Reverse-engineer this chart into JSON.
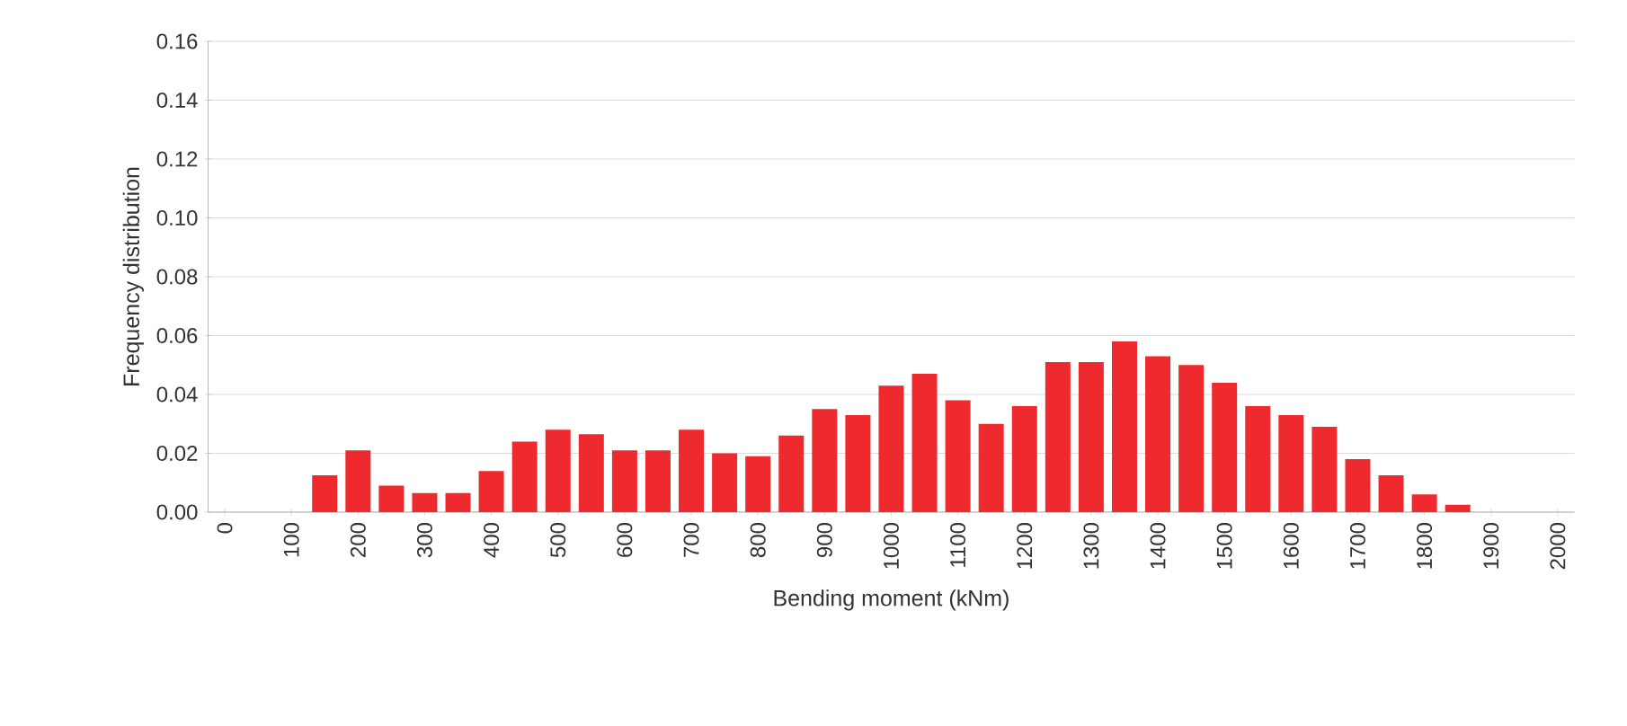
{
  "chart_data": {
    "type": "bar",
    "xlabel": "Bending moment (kNm)",
    "ylabel": "Frequency distribution",
    "categories": [
      "0",
      null,
      "100",
      null,
      "200",
      null,
      "300",
      null,
      "400",
      null,
      "500",
      null,
      "600",
      null,
      "700",
      null,
      "800",
      null,
      "900",
      null,
      "1000",
      null,
      "1100",
      null,
      "1200",
      null,
      "1300",
      null,
      "1400",
      null,
      "1500",
      null,
      "1600",
      null,
      "1700",
      null,
      "1800",
      null,
      "1900",
      null,
      "2000"
    ],
    "values": [
      null,
      null,
      null,
      0.0125,
      0.021,
      0.009,
      0.0065,
      0.0065,
      0.014,
      0.024,
      0.028,
      0.0265,
      0.021,
      0.021,
      0.028,
      0.02,
      0.019,
      0.026,
      0.035,
      0.033,
      0.043,
      0.047,
      0.038,
      0.03,
      0.036,
      0.051,
      0.051,
      0.058,
      0.053,
      0.05,
      0.044,
      0.036,
      0.033,
      0.029,
      0.018,
      0.0125,
      0.006,
      0.0025,
      null,
      null,
      null
    ],
    "color": "#ee2a2f",
    "ylim": [
      0,
      0.16
    ],
    "yticks": [
      {
        "value": 0,
        "label": "0.00"
      },
      {
        "value": 0.02,
        "label": "0.02"
      },
      {
        "value": 0.04,
        "label": "0.04"
      },
      {
        "value": 0.06,
        "label": "0.06"
      },
      {
        "value": 0.08,
        "label": "0.08"
      },
      {
        "value": 0.1,
        "label": "0.10"
      },
      {
        "value": 0.12,
        "label": "0.12"
      },
      {
        "value": 0.14,
        "label": "0.14"
      },
      {
        "value": 0.16,
        "label": "0.16"
      }
    ],
    "grid": "y"
  }
}
